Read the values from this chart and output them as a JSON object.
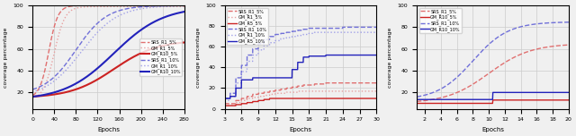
{
  "plot1": {
    "xlabel": "Epochs",
    "ylabel": "coverage percentage",
    "xlim": [
      0,
      280
    ],
    "ylim": [
      5,
      100
    ],
    "xticks": [
      0,
      40,
      80,
      120,
      160,
      200,
      240,
      280
    ],
    "yticks": [
      20,
      40,
      60,
      80,
      100
    ],
    "legend": [
      "SRS_R1_5%",
      "GM_R1_5%",
      "GM_R10_5%",
      "SRS_R1_10%",
      "GM_R1_10%",
      "GM_R10_10%"
    ],
    "bg_color": "#f0f0f0"
  },
  "plot2": {
    "xlabel": "Epochs",
    "ylabel": "coverage percentage",
    "xlim": [
      3,
      30
    ],
    "ylim": [
      0,
      100
    ],
    "xticks": [
      3,
      6,
      9,
      12,
      15,
      18,
      21,
      24,
      27,
      30
    ],
    "yticks": [
      0,
      20,
      40,
      60,
      80,
      100
    ],
    "legend": [
      "SRS_R1_5%",
      "GM_R1_5%",
      "GM_R5_5%",
      "SRS_R1_10%",
      "GM_R1_10%",
      "GM_R5_10%"
    ],
    "bg_color": "#f0f0f0"
  },
  "plot3": {
    "xlabel": "Epochs",
    "ylabel": "coverage percentage",
    "xlim": [
      1,
      20
    ],
    "ylim": [
      5,
      100
    ],
    "xticks": [
      2,
      4,
      6,
      8,
      10,
      12,
      14,
      16,
      18,
      20
    ],
    "yticks": [
      20,
      40,
      60,
      80,
      100
    ],
    "legend": [
      "SRS_R1_5%",
      "GM_R10_5%",
      "SRS_R1_10%",
      "GM_R10_10%"
    ],
    "bg_color": "#f0f0f0"
  },
  "bg_color": "#f0f0f0",
  "grid_color": "#cccccc",
  "red_dash": "#e07070",
  "red_dot": "#e8a0a0",
  "red_solid": "#cc2222",
  "blue_dash": "#7070d8",
  "blue_dot": "#a0a0e8",
  "blue_solid": "#2222bb"
}
